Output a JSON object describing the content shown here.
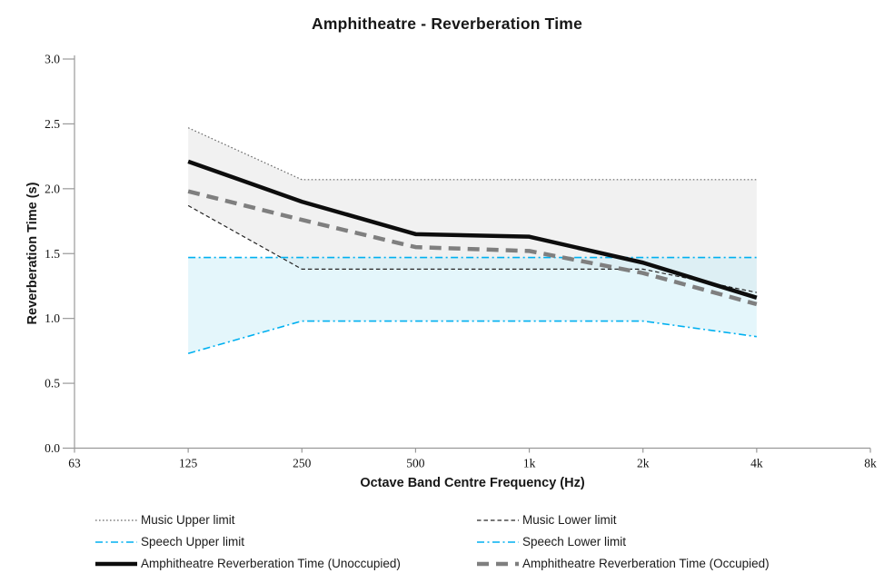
{
  "chart_data": {
    "type": "line",
    "title": "Amphitheatre - Reverberation Time",
    "xlabel": "Octave Band Centre Frequency (Hz)",
    "ylabel": "Reverberation Time (s)",
    "x_axis_labels": [
      "63",
      "125",
      "250",
      "500",
      "1k",
      "2k",
      "4k",
      "8k"
    ],
    "y_tick_labels": [
      "0.0",
      "0.5",
      "1.0",
      "1.5",
      "2.0",
      "2.5",
      "3.0"
    ],
    "ylim": [
      0.0,
      3.0
    ],
    "grid": false,
    "axis_color": "#999999",
    "legend_position": "bottom, two columns",
    "data_x": [
      "125",
      "250",
      "500",
      "1k",
      "2k",
      "4k"
    ],
    "series": [
      {
        "name": "Music Upper limit",
        "values": [
          2.47,
          2.07,
          2.07,
          2.07,
          2.07,
          2.07
        ],
        "color": "#696969",
        "style": "dotted",
        "width": 1.2
      },
      {
        "name": "Music Lower limit",
        "values": [
          1.87,
          1.38,
          1.38,
          1.38,
          1.38,
          1.2
        ],
        "color": "#262626",
        "style": "dashed",
        "width": 1.2
      },
      {
        "name": "Speech Upper limit",
        "values": [
          1.47,
          1.47,
          1.47,
          1.47,
          1.47,
          1.47
        ],
        "color": "#00b0f0",
        "style": "dashdot",
        "width": 1.6
      },
      {
        "name": "Speech Lower limit",
        "values": [
          0.73,
          0.98,
          0.98,
          0.98,
          0.98,
          0.86
        ],
        "color": "#00b0f0",
        "style": "dashdot",
        "width": 1.6
      },
      {
        "name": "Amphitheatre Reverberation Time (Unoccupied)",
        "values": [
          2.21,
          1.9,
          1.65,
          1.63,
          1.43,
          1.16
        ],
        "color": "#0d0d0d",
        "style": "solid",
        "width": 4.5
      },
      {
        "name": "Amphitheatre Reverberation Time (Occupied)",
        "values": [
          1.98,
          1.76,
          1.55,
          1.52,
          1.35,
          1.11
        ],
        "color": "#7f7f7f",
        "style": "longdash",
        "width": 4.5
      }
    ],
    "bands": [
      {
        "name": "music-limits-band",
        "upper_series": 0,
        "lower_series": 1,
        "fill": "#e9e9e9",
        "opacity": 0.65
      },
      {
        "name": "speech-limits-band",
        "upper_series": 2,
        "lower_series": 3,
        "fill": "#c9edf7",
        "opacity": 0.5
      }
    ],
    "legend_rows": [
      [
        0,
        1
      ],
      [
        2,
        3
      ],
      [
        4,
        5
      ]
    ]
  }
}
